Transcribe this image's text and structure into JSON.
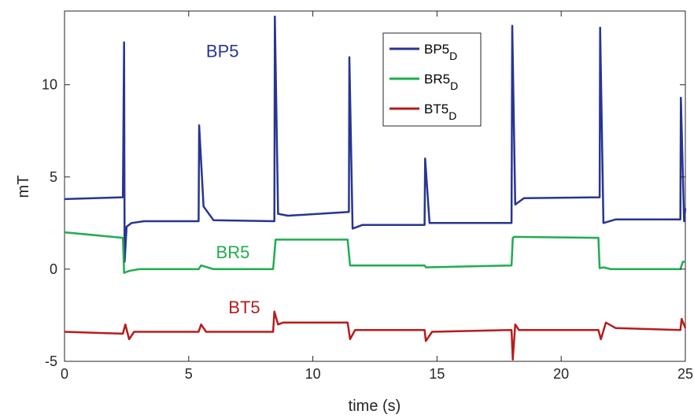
{
  "chart_data": {
    "type": "line",
    "title": "",
    "xlabel": "time (s)",
    "ylabel": "mT",
    "xlim": [
      0,
      25
    ],
    "ylim": [
      -5,
      14
    ],
    "xticks": [
      0,
      5,
      10,
      15,
      20,
      25
    ],
    "yticks": [
      -5,
      0,
      5,
      10
    ],
    "grid": false,
    "legend_position": "top-right",
    "series": [
      {
        "name": "BP5",
        "subscript": "D",
        "color": "#283593",
        "x": [
          0,
          2.35,
          2.4,
          2.42,
          2.5,
          2.7,
          3.2,
          5.4,
          5.42,
          5.6,
          6,
          8.45,
          8.47,
          8.6,
          9,
          11.45,
          11.47,
          11.6,
          12,
          14.5,
          14.52,
          14.7,
          15,
          18,
          18.03,
          18.15,
          18.5,
          21.55,
          21.57,
          21.7,
          22.2,
          24.8,
          24.82,
          24.95,
          25
        ],
        "y": [
          3.8,
          3.9,
          12.3,
          0.4,
          2.3,
          2.5,
          2.6,
          2.6,
          7.8,
          3.4,
          2.65,
          2.6,
          13.7,
          3,
          2.9,
          3.1,
          11.5,
          2.2,
          2.4,
          2.4,
          6,
          2.5,
          2.5,
          2.5,
          13.2,
          3.5,
          3.85,
          3.9,
          13.1,
          2.5,
          2.7,
          2.7,
          9.3,
          2.6,
          3.3
        ]
      },
      {
        "name": "BR5",
        "subscript": "D",
        "color": "#1fad4f",
        "x": [
          0,
          2.35,
          2.4,
          2.6,
          3,
          5.4,
          5.5,
          6,
          8.4,
          8.5,
          9,
          11.4,
          11.5,
          12,
          14.5,
          14.55,
          18,
          18.05,
          18.1,
          21.5,
          21.55,
          21.7,
          22,
          24.8,
          24.9,
          25
        ],
        "y": [
          2,
          1.7,
          -0.2,
          -0.1,
          0,
          0,
          0.2,
          0,
          0,
          1.6,
          1.6,
          1.6,
          0.2,
          0.2,
          0.2,
          0.1,
          0.2,
          1.7,
          1.75,
          1.7,
          0.05,
          0.1,
          0,
          0,
          0.4,
          0.4
        ]
      },
      {
        "name": "BT5",
        "subscript": "D",
        "color": "#b71c1c",
        "x": [
          0,
          2.35,
          2.45,
          2.6,
          2.8,
          5.4,
          5.5,
          5.7,
          8.4,
          8.45,
          8.6,
          8.8,
          11.4,
          11.5,
          11.7,
          14.5,
          14.55,
          14.8,
          18,
          18.05,
          18.15,
          18.3,
          21.5,
          21.6,
          21.8,
          22.2,
          24.8,
          24.85,
          25
        ],
        "y": [
          -3.4,
          -3.5,
          -3.0,
          -3.8,
          -3.4,
          -3.4,
          -3.0,
          -3.4,
          -3.4,
          -2.3,
          -3.0,
          -2.9,
          -2.9,
          -3.8,
          -3.3,
          -3.3,
          -3.9,
          -3.4,
          -3.3,
          -4.9,
          -3.0,
          -3.3,
          -3.3,
          -3.8,
          -2.9,
          -3.2,
          -3.3,
          -2.7,
          -3.2
        ]
      }
    ],
    "annotations": [
      {
        "text": "BP5",
        "x": 5.7,
        "y": 11.5,
        "color": "#283593"
      },
      {
        "text": "BR5",
        "x": 6.1,
        "y": 0.6,
        "color": "#1fad4f"
      },
      {
        "text": "BT5",
        "x": 6.6,
        "y": -2.4,
        "color": "#b71c1c"
      }
    ]
  }
}
